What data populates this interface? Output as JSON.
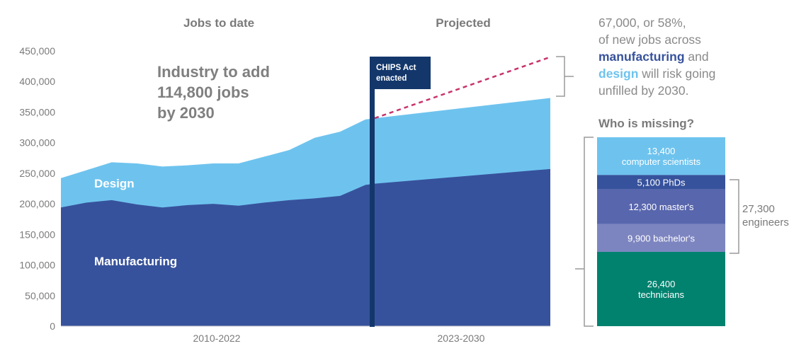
{
  "chart_data": {
    "type": "area",
    "headers": {
      "history": "Jobs to date",
      "projection": "Projected"
    },
    "period_labels": [
      "2010-2022",
      "2023-2030"
    ],
    "headline": [
      "Industry to add",
      "114,800 jobs",
      "by 2030"
    ],
    "ylim": [
      0,
      450000
    ],
    "yticks": [
      0,
      50000,
      100000,
      150000,
      200000,
      250000,
      300000,
      350000,
      400000,
      450000
    ],
    "ytick_labels": [
      "0",
      "50,000",
      "100,000",
      "150,000",
      "200,000",
      "250,000",
      "300,000",
      "350,000",
      "400,000",
      "450,000"
    ],
    "x": [
      2010,
      2011,
      2012,
      2013,
      2014,
      2015,
      2016,
      2017,
      2018,
      2019,
      2020,
      2021,
      2022,
      2023,
      2030
    ],
    "series": [
      {
        "name": "Manufacturing",
        "stack_total": [
          194000,
          202000,
          206000,
          199000,
          194000,
          198000,
          200000,
          197000,
          202000,
          206000,
          209000,
          213000,
          231000,
          233000,
          257000
        ],
        "color": "#37529c"
      },
      {
        "name": "Design",
        "stack_total": [
          242000,
          255000,
          268000,
          266000,
          261000,
          263000,
          266000,
          266000,
          277000,
          288000,
          308000,
          318000,
          338000,
          340000,
          373000
        ],
        "color": "#6ec3ee"
      }
    ],
    "projection_line": {
      "x": [
        2023,
        2030
      ],
      "y": [
        340000,
        440000
      ],
      "color": "#c8336b"
    },
    "event_marker": {
      "x": 2022.5,
      "label": [
        "CHIPS Act",
        "enacted"
      ],
      "color": "#13376b"
    },
    "callout": {
      "line1": "67,000, or 58%,",
      "line2": "of new jobs across",
      "mfg": "manufacturing",
      "and": " and",
      "dsg": "design",
      "line4_rest": " will risk going",
      "line5": "unfilled by 2030."
    },
    "missing": {
      "title": "Who is missing?",
      "segments": [
        {
          "label": [
            "13,400",
            "computer scientists"
          ],
          "value": 13400,
          "color": "#6ec3ee"
        },
        {
          "label": [
            "5,100 PhDs"
          ],
          "value": 5100,
          "color": "#37529c"
        },
        {
          "label": [
            "12,300 master's"
          ],
          "value": 12300,
          "color": "#5866ad"
        },
        {
          "label": [
            "9,900 bachelor's"
          ],
          "value": 9900,
          "color": "#7d85c0"
        },
        {
          "label": [
            "26,400",
            "technicians"
          ],
          "value": 26400,
          "color": "#00826f"
        }
      ],
      "engineers_label": [
        "27,300",
        "engineers"
      ]
    },
    "colors": {
      "axis_text": "#7a7a7a",
      "bracket": "#9a9a9a"
    }
  }
}
